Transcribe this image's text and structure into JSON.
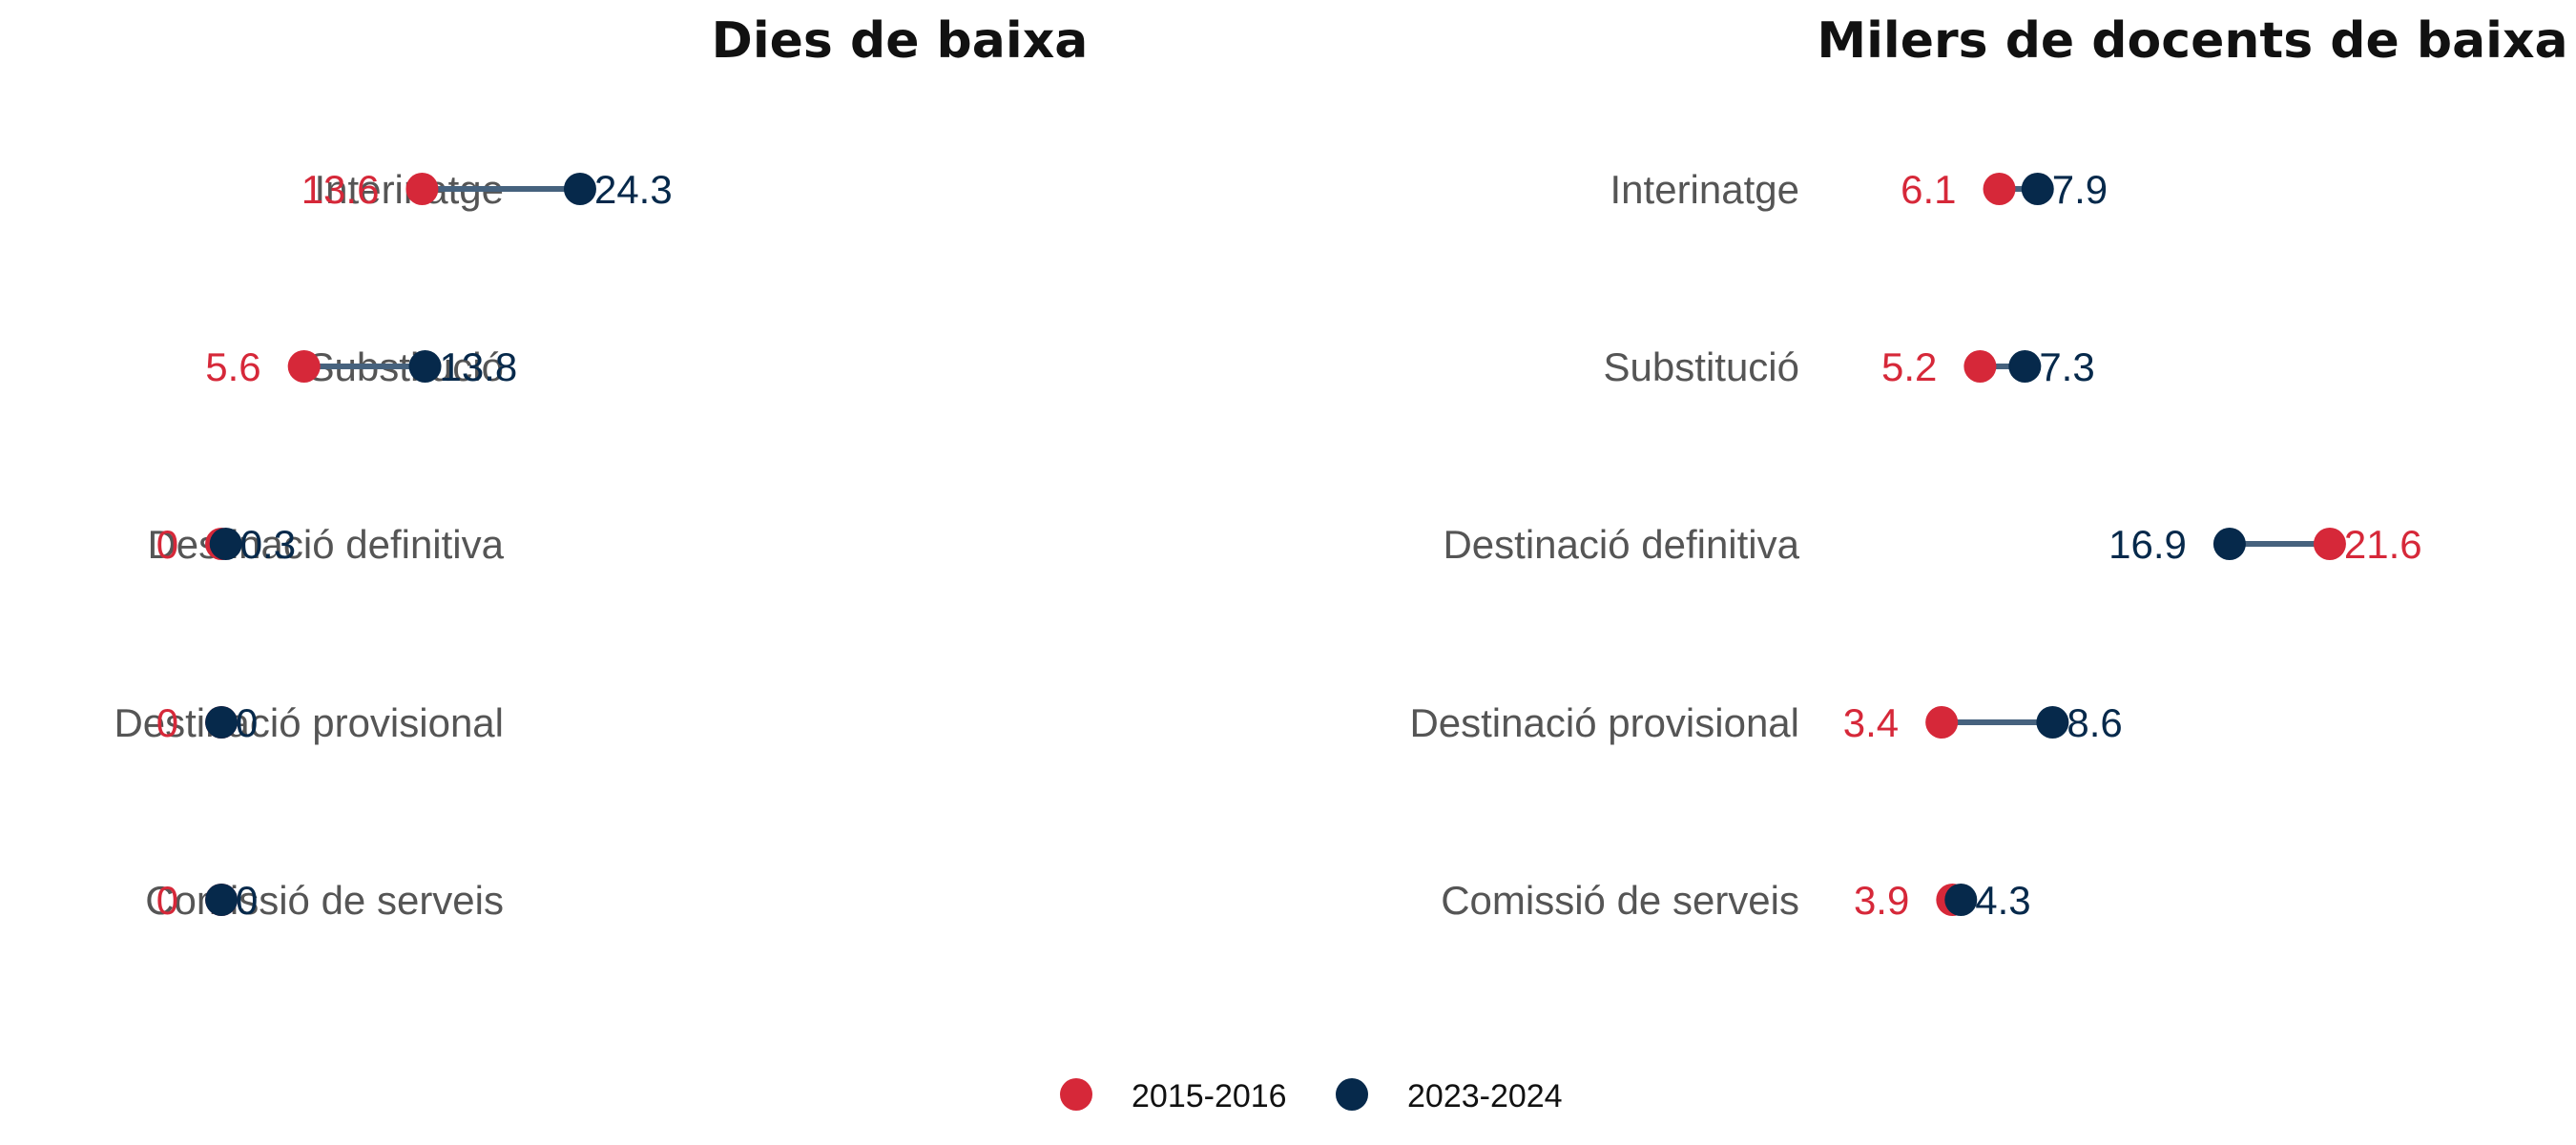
{
  "colors": {
    "series_2015": "#d62839",
    "series_2023": "#06294b",
    "connector": "#46627e",
    "category_text": "#555555"
  },
  "legend": {
    "position": "bottom",
    "items": [
      {
        "label": "2015-2016",
        "color": "#d62839"
      },
      {
        "label": "2023-2024",
        "color": "#06294b"
      }
    ]
  },
  "chart_data": [
    {
      "type": "dumbbell",
      "title": "Dies de baixa",
      "xlabel": "",
      "ylabel": "",
      "xlim": [
        -15,
        45
      ],
      "grid": false,
      "categories": [
        "Interinatge",
        "Substitució",
        "Destinació definitiva",
        "Destinació provisional",
        "Comissió de serveis"
      ],
      "series": [
        {
          "name": "2015-2016",
          "values": [
            13.6,
            5.6,
            0,
            0,
            0
          ],
          "labels": [
            "13.6",
            "5.6",
            "0",
            "0",
            "0"
          ]
        },
        {
          "name": "2023-2024",
          "values": [
            24.3,
            13.8,
            0.3,
            0,
            0
          ],
          "labels": [
            "24.3",
            "13.8",
            "0.3",
            "0",
            "0"
          ]
        }
      ]
    },
    {
      "type": "dumbbell",
      "title": "Milers de docents de baixa",
      "xlabel": "",
      "ylabel": "",
      "xlim": [
        -0.5,
        23
      ],
      "grid": false,
      "categories": [
        "Interinatge",
        "Substitució",
        "Destinació definitiva",
        "Destinació provisional",
        "Comissió de serveis"
      ],
      "series": [
        {
          "name": "2015-2016",
          "values": [
            6.1,
            5.2,
            21.6,
            3.4,
            3.9
          ],
          "labels": [
            "6.1",
            "5.2",
            "21.6",
            "3.4",
            "3.9"
          ]
        },
        {
          "name": "2023-2024",
          "values": [
            7.9,
            7.3,
            16.9,
            8.6,
            4.3
          ],
          "labels": [
            "7.9",
            "7.3",
            "16.9",
            "8.6",
            "4.3"
          ]
        }
      ]
    }
  ]
}
